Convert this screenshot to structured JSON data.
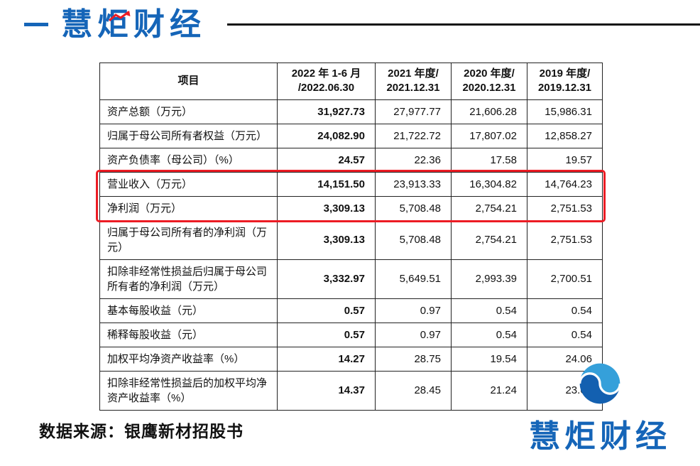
{
  "brand": {
    "name": "慧炬财经",
    "color_blue": "#1565b8",
    "accent_red": "#ec1c24"
  },
  "icons": {
    "brand_spark": "uptrend-arrow",
    "brand_swirl": "wave-circle"
  },
  "colors": {
    "table_border": "#222222",
    "highlight_red": "#ec1c24",
    "text": "#111111"
  },
  "table": {
    "columns": [
      {
        "line1": "项目",
        "line2": ""
      },
      {
        "line1": "2022 年 1-6 月",
        "line2": "/2022.06.30"
      },
      {
        "line1": "2021 年度/",
        "line2": "2021.12.31"
      },
      {
        "line1": "2020 年度/",
        "line2": "2020.12.31"
      },
      {
        "line1": "2019 年度/",
        "line2": "2019.12.31"
      }
    ],
    "rows": [
      {
        "label": "资产总额（万元）",
        "values": [
          "31,927.73",
          "27,977.77",
          "21,606.28",
          "15,986.31"
        ],
        "highlight": false
      },
      {
        "label": "归属于母公司所有者权益（万元）",
        "values": [
          "24,082.90",
          "21,722.72",
          "17,807.02",
          "12,858.27"
        ],
        "highlight": false
      },
      {
        "label": "资产负债率（母公司）（%）",
        "values": [
          "24.57",
          "22.36",
          "17.58",
          "19.57"
        ],
        "highlight": false
      },
      {
        "label": "营业收入（万元）",
        "values": [
          "14,151.50",
          "23,913.33",
          "16,304.82",
          "14,764.23"
        ],
        "highlight": true
      },
      {
        "label": "净利润（万元）",
        "values": [
          "3,309.13",
          "5,708.48",
          "2,754.21",
          "2,751.53"
        ],
        "highlight": true
      },
      {
        "label": "归属于母公司所有者的净利润（万元）",
        "values": [
          "3,309.13",
          "5,708.48",
          "2,754.21",
          "2,751.53"
        ],
        "highlight": false
      },
      {
        "label": "扣除非经常性损益后归属于母公司所有者的净利润（万元）",
        "values": [
          "3,332.97",
          "5,649.51",
          "2,993.39",
          "2,700.51"
        ],
        "highlight": false
      },
      {
        "label": "基本每股收益（元）",
        "values": [
          "0.57",
          "0.97",
          "0.54",
          "0.54"
        ],
        "highlight": false
      },
      {
        "label": "稀释每股收益（元）",
        "values": [
          "0.57",
          "0.97",
          "0.54",
          "0.54"
        ],
        "highlight": false
      },
      {
        "label": "加权平均净资产收益率（%）",
        "values": [
          "14.27",
          "28.75",
          "19.54",
          "24.06"
        ],
        "highlight": false
      },
      {
        "label": "扣除非经常性损益后的加权平均净资产收益率（%）",
        "values": [
          "14.37",
          "28.45",
          "21.24",
          "23.62"
        ],
        "highlight": false
      }
    ]
  },
  "footer": {
    "source_text": "数据来源：银鹰新材招股书",
    "logo_text": "慧炬财经"
  }
}
